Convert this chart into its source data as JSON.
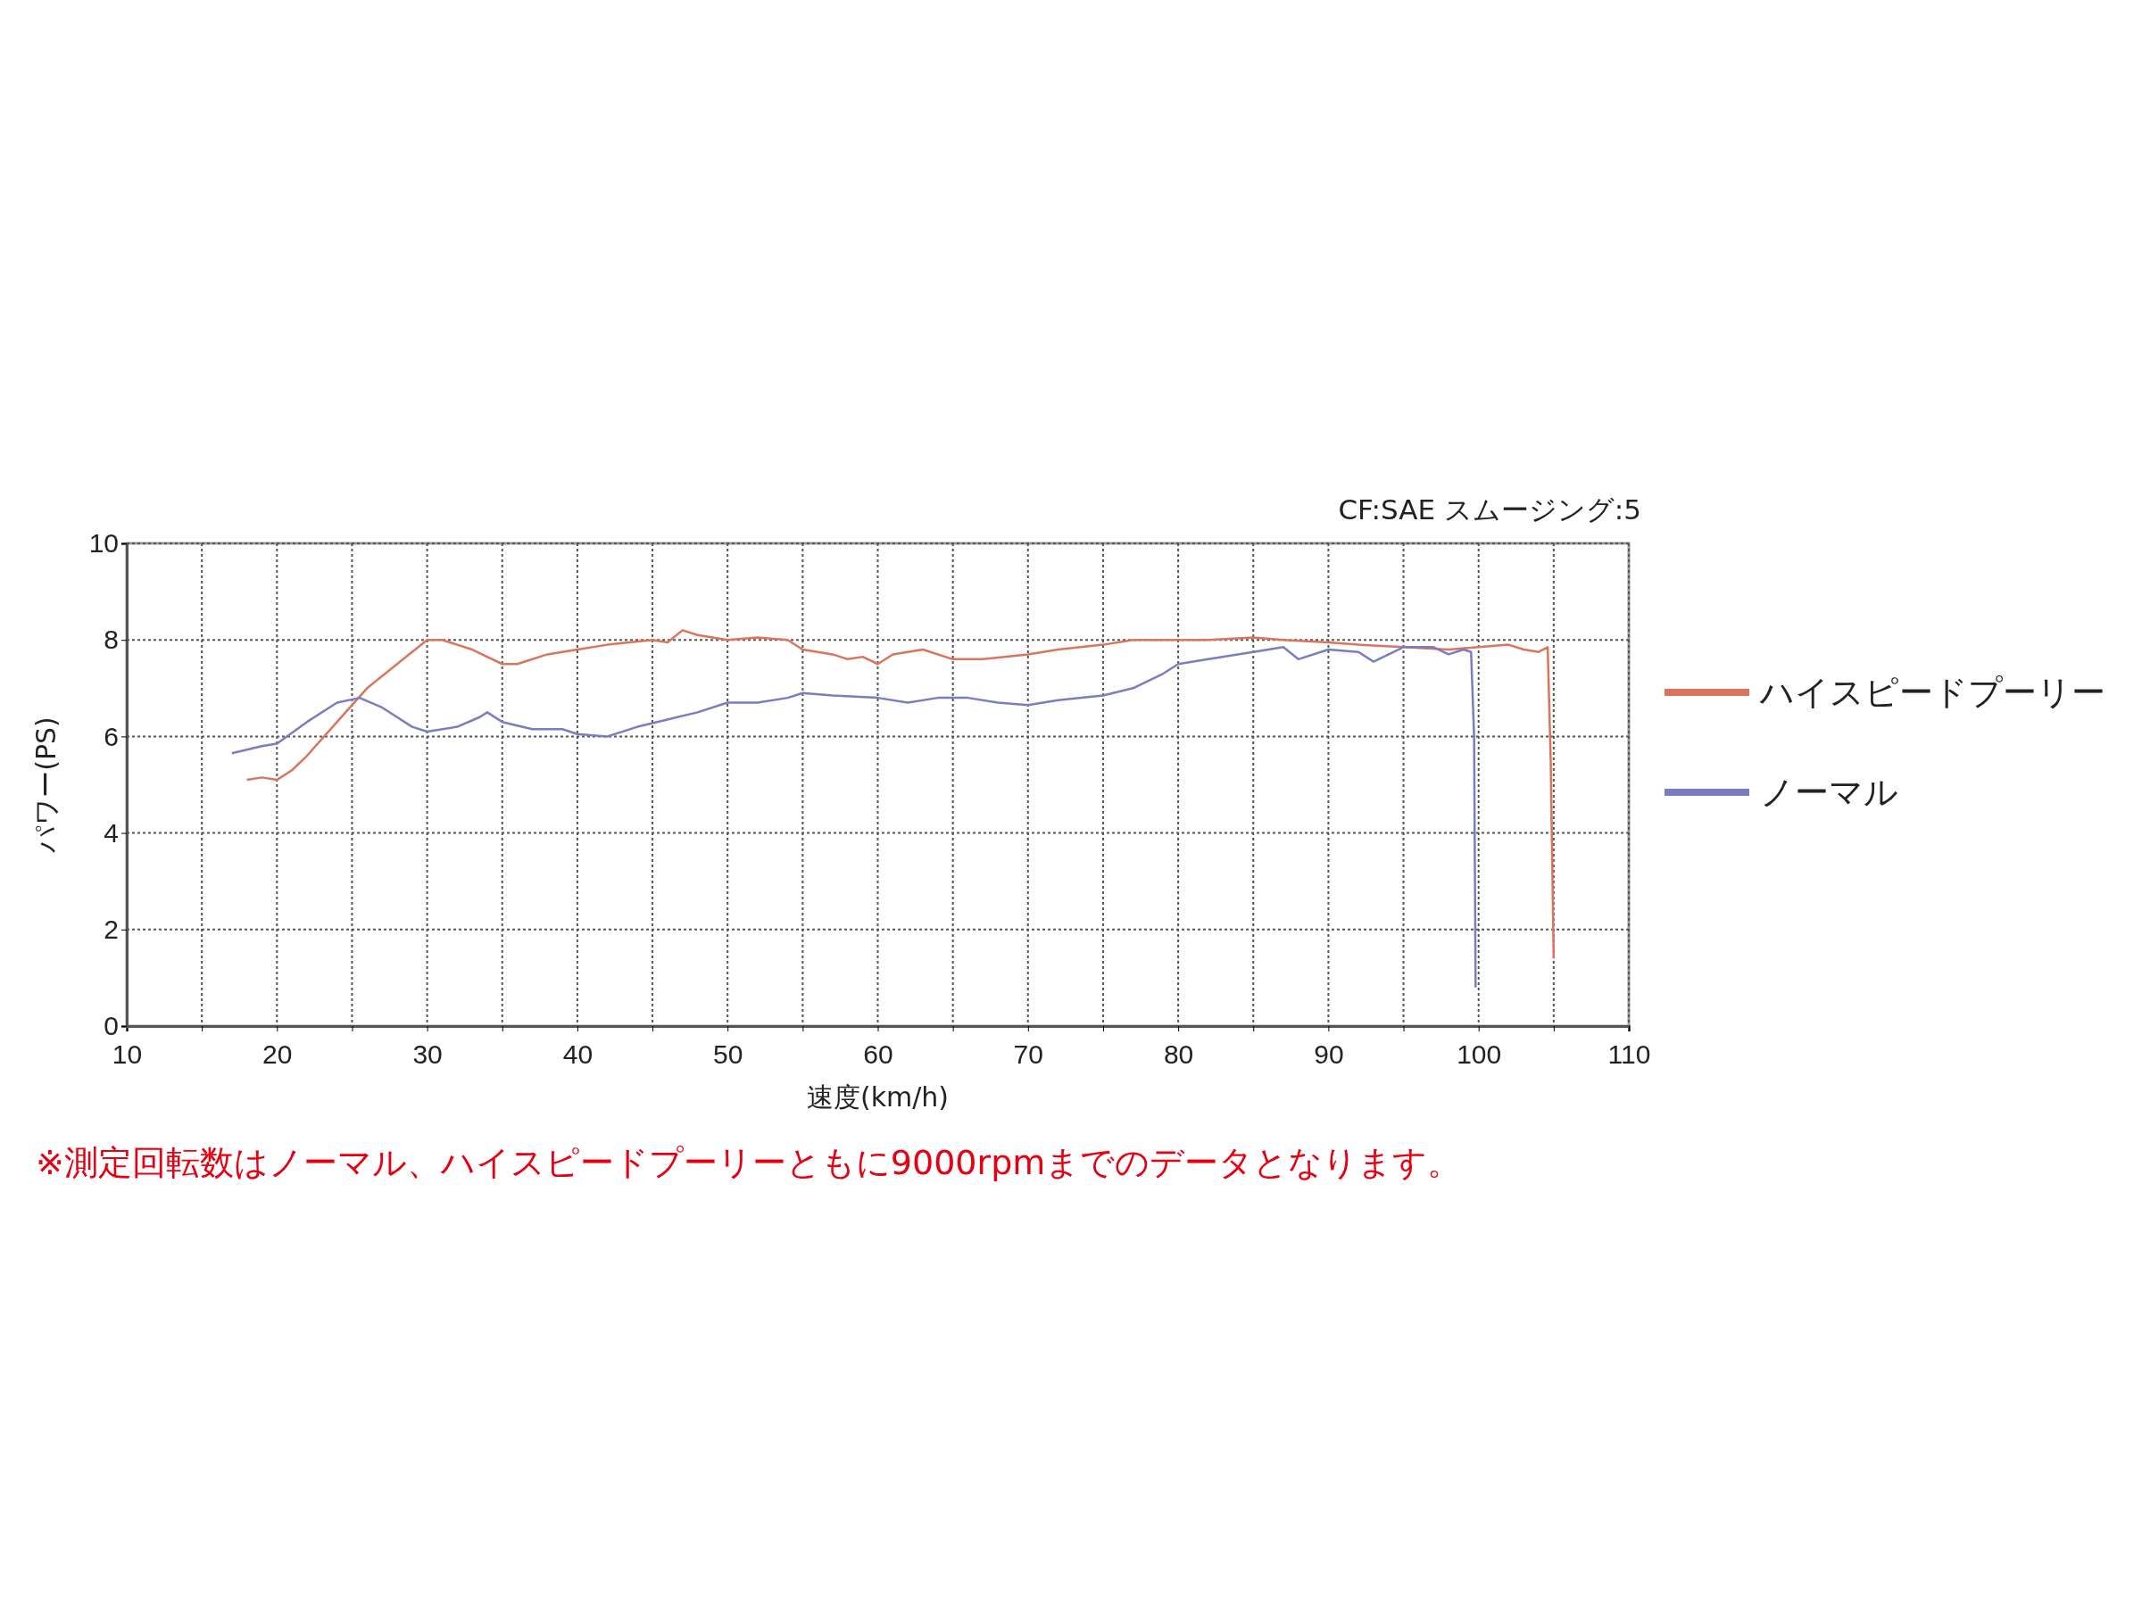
{
  "chart_data": {
    "type": "line",
    "subtitle": "CF:SAE スムージング:5",
    "xlabel": "速度(km/h)",
    "ylabel": "パワー(PS)",
    "annotations": [
      "※測定回転数はノーマル、ハイスピードプーリーともに9000rpmまでのデータとなります。"
    ],
    "xlim": [
      10,
      110
    ],
    "ylim": [
      0,
      10
    ],
    "xticks": [
      10,
      {
        "value": 15,
        "label": null
      },
      20,
      {
        "value": 25,
        "label": null
      },
      30,
      {
        "value": 35,
        "label": null
      },
      40,
      {
        "value": 45,
        "label": null
      },
      50,
      {
        "value": 55,
        "label": null
      },
      60,
      {
        "value": 65,
        "label": null
      },
      70,
      {
        "value": 75,
        "label": null
      },
      80,
      {
        "value": 85,
        "label": null
      },
      90,
      {
        "value": 95,
        "label": null
      },
      100,
      {
        "value": 105,
        "label": null
      },
      110
    ],
    "yticks": [
      0,
      2,
      4,
      6,
      8,
      10
    ],
    "grid": true,
    "legend": "right",
    "line_style": "solid",
    "series": [
      {
        "name": "ハイスピードプーリー",
        "color": "#d9755e",
        "x": [
          18,
          19,
          20,
          21,
          22,
          24,
          26,
          28,
          30,
          31,
          33,
          35,
          36,
          38,
          40,
          42,
          45,
          46,
          47,
          48,
          50,
          52,
          54,
          55,
          57,
          58,
          59,
          60,
          61,
          62,
          63,
          65,
          67,
          70,
          72,
          75,
          77,
          80,
          82,
          85,
          87,
          90,
          92,
          95,
          98,
          100,
          102,
          103,
          104,
          104.6,
          104.8,
          105
        ],
        "values": [
          5.1,
          5.15,
          5.1,
          5.3,
          5.6,
          6.3,
          7.0,
          7.5,
          8.0,
          8.0,
          7.8,
          7.5,
          7.5,
          7.7,
          7.8,
          7.9,
          8.0,
          7.95,
          8.2,
          8.1,
          8.0,
          8.05,
          8.0,
          7.8,
          7.7,
          7.6,
          7.65,
          7.5,
          7.7,
          7.75,
          7.8,
          7.6,
          7.6,
          7.7,
          7.8,
          7.9,
          8.0,
          8.0,
          8.0,
          8.05,
          8.0,
          7.95,
          7.9,
          7.85,
          7.8,
          7.85,
          7.9,
          7.8,
          7.75,
          7.85,
          5.5,
          1.4
        ]
      },
      {
        "name": "ノーマル",
        "color": "#7b7dc0",
        "x": [
          17,
          19,
          20,
          22,
          24,
          25.5,
          27,
          29,
          30,
          32,
          33.5,
          34,
          35,
          37,
          39,
          40,
          42,
          44,
          46,
          48,
          50,
          52,
          54,
          55,
          57,
          60,
          62,
          64,
          66,
          68,
          70,
          72,
          75,
          77,
          79,
          80,
          82,
          85,
          87,
          88,
          90,
          92,
          93,
          95,
          97,
          98,
          99,
          99.5,
          99.7,
          99.8
        ],
        "values": [
          5.65,
          5.8,
          5.85,
          6.3,
          6.7,
          6.8,
          6.6,
          6.2,
          6.1,
          6.2,
          6.4,
          6.5,
          6.3,
          6.15,
          6.15,
          6.05,
          6.0,
          6.2,
          6.35,
          6.5,
          6.7,
          6.7,
          6.8,
          6.9,
          6.85,
          6.8,
          6.7,
          6.8,
          6.8,
          6.7,
          6.65,
          6.75,
          6.85,
          7.0,
          7.3,
          7.5,
          7.6,
          7.75,
          7.85,
          7.6,
          7.8,
          7.75,
          7.55,
          7.85,
          7.85,
          7.7,
          7.8,
          7.75,
          6.0,
          0.8
        ]
      }
    ]
  }
}
